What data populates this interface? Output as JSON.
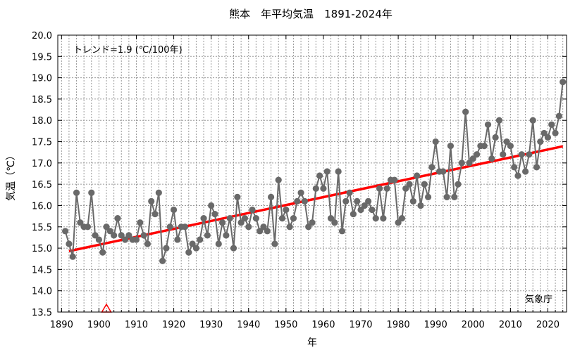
{
  "chart_data": {
    "type": "line",
    "title": "熊本　年平均気温　1891-2024年",
    "xlabel": "年",
    "ylabel": "気温（℃）",
    "xlim": [
      1889,
      2025
    ],
    "ylim": [
      13.5,
      20.0
    ],
    "xticks": [
      1890,
      1900,
      1910,
      1920,
      1930,
      1940,
      1950,
      1960,
      1970,
      1980,
      1990,
      2000,
      2010,
      2020
    ],
    "yticks": [
      13.5,
      14.0,
      14.5,
      15.0,
      15.5,
      16.0,
      16.5,
      17.0,
      17.5,
      18.0,
      18.5,
      19.0,
      19.5,
      20.0
    ],
    "grid": true,
    "trend_label": "トレンド=1.9 (℃/100年)",
    "source": "気象庁",
    "series": [
      {
        "color": "#696969",
        "x_start": 1891,
        "values": [
          15.4,
          15.1,
          14.8,
          16.3,
          15.6,
          15.5,
          15.5,
          16.3,
          15.3,
          15.2,
          14.9,
          15.5,
          15.4,
          15.3,
          15.7,
          15.3,
          15.2,
          15.3,
          15.2,
          15.2,
          15.6,
          15.3,
          15.1,
          16.1,
          15.8,
          16.3,
          14.7,
          15.0,
          15.5,
          15.9,
          15.2,
          15.5,
          15.5,
          14.9,
          15.1,
          15.0,
          15.2,
          15.7,
          15.3,
          16.0,
          15.8,
          15.1,
          15.6,
          15.3,
          15.7,
          15.0,
          16.2,
          15.6,
          15.7,
          15.5,
          15.9,
          15.7,
          15.4,
          15.5,
          15.4,
          16.2,
          15.1,
          16.6,
          15.7,
          15.9,
          15.5,
          15.7,
          16.1,
          16.3,
          16.1,
          15.5,
          15.6,
          16.4,
          16.7,
          16.4,
          16.8,
          15.7,
          15.6,
          16.8,
          15.4,
          16.1,
          16.3,
          15.8,
          16.1,
          15.9,
          16.0,
          16.1,
          15.9,
          15.7,
          16.4,
          15.7,
          16.4,
          16.6,
          16.6,
          15.6,
          15.7,
          16.4,
          16.5,
          16.1,
          16.7,
          16.0,
          16.5,
          16.2,
          16.9,
          17.5,
          16.8,
          16.8,
          16.2,
          17.4,
          16.2,
          16.5,
          17.0,
          18.2,
          17.0,
          17.1,
          17.2,
          17.4,
          17.4,
          17.9,
          17.1,
          17.6,
          18.0,
          17.2,
          17.5,
          17.4,
          16.9,
          16.7,
          17.2,
          16.8,
          17.2,
          18.0,
          16.9,
          17.5,
          17.7,
          17.6,
          17.9,
          17.7,
          18.1,
          18.9
        ]
      }
    ],
    "trend": {
      "color": "#ff0000",
      "x": [
        1892,
        2024
      ],
      "y": [
        14.93,
        17.39
      ]
    },
    "markers": [
      {
        "shape": "triangle",
        "x": 1902,
        "y": 13.5,
        "color": "#ff0000"
      }
    ]
  }
}
